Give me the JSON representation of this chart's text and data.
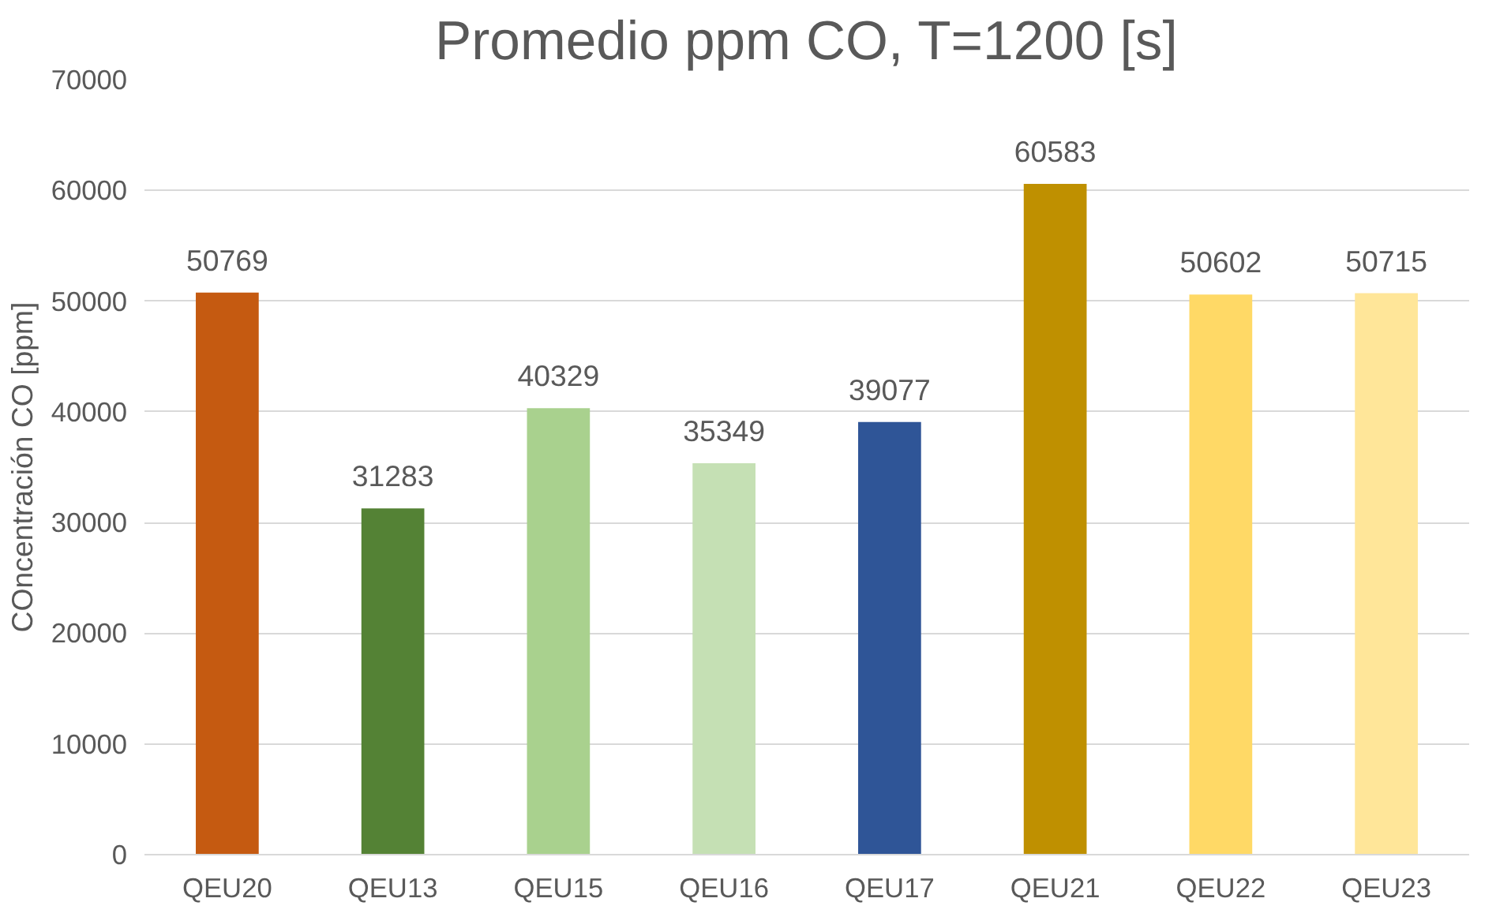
{
  "chart_data": {
    "type": "bar",
    "title": "Promedio ppm CO, T=1200 [s]",
    "ylabel": "COncentración CO [ppm]",
    "categories": [
      "QEU20",
      "QEU13",
      "QEU15",
      "QEU16",
      "QEU17",
      "QEU21",
      "QEU22",
      "QEU23"
    ],
    "values": [
      50769,
      31283,
      40329,
      35349,
      39077,
      60583,
      50602,
      50715
    ],
    "colors": [
      "#c55a11",
      "#548235",
      "#a9d18e",
      "#c5e0b4",
      "#2f5597",
      "#bf9000",
      "#ffd966",
      "#ffe699"
    ],
    "ylim": [
      0,
      70000
    ],
    "yticks": [
      0,
      10000,
      20000,
      30000,
      40000,
      50000,
      60000,
      70000
    ],
    "grid": "y",
    "data_labels": true
  }
}
